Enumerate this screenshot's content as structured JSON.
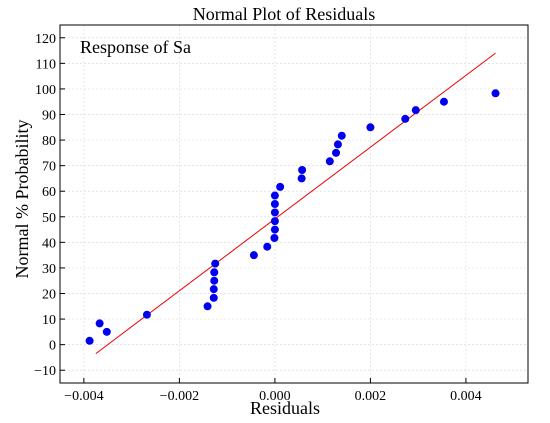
{
  "chart_data": {
    "type": "scatter",
    "title": "Normal Plot of Residuals",
    "annotation": "Response of Sa",
    "xlabel": "Residuals",
    "ylabel": "Normal % Probability",
    "xlim": [
      -0.0045,
      0.0053
    ],
    "ylim": [
      -15,
      125
    ],
    "x_ticks": [
      -0.004,
      -0.002,
      0,
      0.002,
      0.004
    ],
    "x_tick_labels": [
      "−0.004",
      "−0.002",
      "0.000",
      "0.002",
      "0.004"
    ],
    "y_ticks": [
      -10,
      0,
      10,
      20,
      30,
      40,
      50,
      60,
      70,
      80,
      90,
      100,
      110,
      120
    ],
    "y_tick_labels": [
      "−10",
      "0",
      "10",
      "20",
      "30",
      "40",
      "50",
      "60",
      "70",
      "80",
      "90",
      "100",
      "110",
      "120"
    ],
    "grid": true,
    "series": [
      {
        "color": "#0000ee",
        "points": [
          {
            "x": -0.00388,
            "y": 1.5
          },
          {
            "x": -0.00352,
            "y": 5.0
          },
          {
            "x": -0.00367,
            "y": 8.3
          },
          {
            "x": -0.00268,
            "y": 11.7
          },
          {
            "x": -0.00141,
            "y": 15.0
          },
          {
            "x": -0.00128,
            "y": 18.3
          },
          {
            "x": -0.00128,
            "y": 21.7
          },
          {
            "x": -0.00127,
            "y": 25.0
          },
          {
            "x": -0.00127,
            "y": 28.3
          },
          {
            "x": -0.00125,
            "y": 31.7
          },
          {
            "x": -0.00044,
            "y": 35.0
          },
          {
            "x": -0.00016,
            "y": 38.3
          },
          {
            "x": -1e-05,
            "y": 41.7
          },
          {
            "x": 0.0,
            "y": 45.0
          },
          {
            "x": 0.0,
            "y": 48.3
          },
          {
            "x": 0.0,
            "y": 51.7
          },
          {
            "x": 0.0,
            "y": 55.0
          },
          {
            "x": 0.0,
            "y": 58.3
          },
          {
            "x": 0.00011,
            "y": 61.7
          },
          {
            "x": 0.00056,
            "y": 65.0
          },
          {
            "x": 0.00057,
            "y": 68.3
          },
          {
            "x": 0.00115,
            "y": 71.7
          },
          {
            "x": 0.00128,
            "y": 75.0
          },
          {
            "x": 0.00132,
            "y": 78.3
          },
          {
            "x": 0.0014,
            "y": 81.7
          },
          {
            "x": 0.002,
            "y": 85.0
          },
          {
            "x": 0.00273,
            "y": 88.3
          },
          {
            "x": 0.00295,
            "y": 91.7
          },
          {
            "x": 0.00354,
            "y": 95.0
          },
          {
            "x": 0.00462,
            "y": 98.3
          }
        ]
      }
    ],
    "fit_line": {
      "color": "#ee0000",
      "start": {
        "x": -0.00375,
        "y": -3.5
      },
      "end": {
        "x": 0.00462,
        "y": 114
      }
    }
  }
}
